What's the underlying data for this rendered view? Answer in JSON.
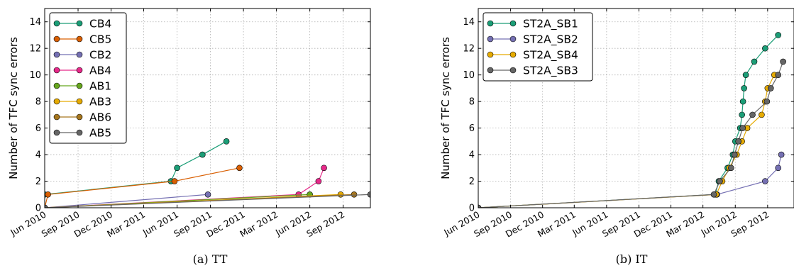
{
  "chart_data": [
    {
      "type": "line",
      "ylabel": "Number of TFC sync errors",
      "xlabel": "",
      "caption": "(a)  TT",
      "xlim": [
        "2010-06-01",
        "2012-11-15"
      ],
      "ylim": [
        0,
        15
      ],
      "yticks": [
        0,
        2,
        4,
        6,
        8,
        10,
        12,
        14
      ],
      "xticks": [
        {
          "date": "2010-06-01",
          "label": "Jun 2010"
        },
        {
          "date": "2010-09-01",
          "label": "Sep 2010"
        },
        {
          "date": "2010-12-01",
          "label": "Dec 2010"
        },
        {
          "date": "2011-03-01",
          "label": "Mar 2011"
        },
        {
          "date": "2011-06-01",
          "label": "Jun 2011"
        },
        {
          "date": "2011-09-01",
          "label": "Sep 2011"
        },
        {
          "date": "2011-12-01",
          "label": "Dec 2011"
        },
        {
          "date": "2012-03-01",
          "label": "Mar 2012"
        },
        {
          "date": "2012-06-01",
          "label": "Jun 2012"
        },
        {
          "date": "2012-09-01",
          "label": "Sep 2012"
        }
      ],
      "grid": true,
      "legend_position": "top-left",
      "series": [
        {
          "name": "CB4",
          "color": "#1b9e77",
          "points": [
            [
              "2010-06-01",
              0
            ],
            [
              "2010-06-01",
              1
            ],
            [
              "2011-05-15",
              2
            ],
            [
              "2011-06-01",
              3
            ],
            [
              "2011-08-10",
              4
            ],
            [
              "2011-10-15",
              5
            ]
          ]
        },
        {
          "name": "CB5",
          "color": "#d95f02",
          "points": [
            [
              "2010-06-01",
              0
            ],
            [
              "2010-06-10",
              1
            ],
            [
              "2011-05-25",
              2
            ],
            [
              "2011-11-20",
              3
            ]
          ]
        },
        {
          "name": "CB2",
          "color": "#7570b3",
          "points": [
            [
              "2010-06-01",
              0
            ],
            [
              "2011-08-25",
              1
            ]
          ]
        },
        {
          "name": "AB4",
          "color": "#e7298a",
          "points": [
            [
              "2010-06-01",
              0
            ],
            [
              "2012-05-01",
              1
            ],
            [
              "2012-06-25",
              2
            ],
            [
              "2012-07-10",
              3
            ]
          ]
        },
        {
          "name": "AB1",
          "color": "#66a61e",
          "points": [
            [
              "2010-06-01",
              0
            ],
            [
              "2012-06-01",
              1
            ]
          ]
        },
        {
          "name": "AB3",
          "color": "#e6ab02",
          "points": [
            [
              "2010-06-01",
              0
            ],
            [
              "2012-08-25",
              1
            ]
          ]
        },
        {
          "name": "AB6",
          "color": "#a6761d",
          "points": [
            [
              "2010-06-01",
              0
            ],
            [
              "2012-10-01",
              1
            ]
          ]
        },
        {
          "name": "AB5",
          "color": "#666666",
          "points": [
            [
              "2010-06-01",
              0
            ],
            [
              "2012-11-15",
              1
            ]
          ]
        }
      ]
    },
    {
      "type": "line",
      "ylabel": "Number of TFC sync errors",
      "xlabel": "",
      "caption": "(b)  IT",
      "xlim": [
        "2010-06-01",
        "2012-11-15"
      ],
      "ylim": [
        0,
        15
      ],
      "yticks": [
        0,
        2,
        4,
        6,
        8,
        10,
        12,
        14
      ],
      "xticks": [
        {
          "date": "2010-06-01",
          "label": "Jun 2010"
        },
        {
          "date": "2010-09-01",
          "label": "Sep 2010"
        },
        {
          "date": "2010-12-01",
          "label": "Dec 2010"
        },
        {
          "date": "2011-03-01",
          "label": "Mar 2011"
        },
        {
          "date": "2011-06-01",
          "label": "Jun 2011"
        },
        {
          "date": "2011-09-01",
          "label": "Sep 2011"
        },
        {
          "date": "2011-12-01",
          "label": "Dec 2011"
        },
        {
          "date": "2012-03-01",
          "label": "Mar 2012"
        },
        {
          "date": "2012-06-01",
          "label": "Jun 2012"
        },
        {
          "date": "2012-09-01",
          "label": "Sep 2012"
        }
      ],
      "grid": true,
      "legend_position": "top-left",
      "series": [
        {
          "name": "ST2A_SB1",
          "color": "#1b9e77",
          "points": [
            [
              "2010-06-01",
              0
            ],
            [
              "2012-04-05",
              1
            ],
            [
              "2012-04-15",
              2
            ],
            [
              "2012-05-10",
              3
            ],
            [
              "2012-05-25",
              4
            ],
            [
              "2012-06-01",
              5
            ],
            [
              "2012-06-15",
              6
            ],
            [
              "2012-06-20",
              7
            ],
            [
              "2012-06-23",
              8
            ],
            [
              "2012-06-26",
              9
            ],
            [
              "2012-07-01",
              10
            ],
            [
              "2012-07-25",
              11
            ],
            [
              "2012-08-25",
              12
            ],
            [
              "2012-10-01",
              13
            ]
          ]
        },
        {
          "name": "ST2A_SB2",
          "color": "#7570b3",
          "points": [
            [
              "2010-06-01",
              0
            ],
            [
              "2012-04-10",
              1
            ],
            [
              "2012-08-25",
              2
            ],
            [
              "2012-10-01",
              3
            ],
            [
              "2012-10-10",
              4
            ]
          ]
        },
        {
          "name": "ST2A_SB4",
          "color": "#e6ab02",
          "points": [
            [
              "2010-06-01",
              0
            ],
            [
              "2012-04-08",
              1
            ],
            [
              "2012-04-25",
              2
            ],
            [
              "2012-05-15",
              3
            ],
            [
              "2012-06-05",
              4
            ],
            [
              "2012-06-20",
              5
            ],
            [
              "2012-07-05",
              6
            ],
            [
              "2012-08-15",
              7
            ],
            [
              "2012-08-25",
              8
            ],
            [
              "2012-09-01",
              9
            ],
            [
              "2012-09-20",
              10
            ]
          ]
        },
        {
          "name": "ST2A_SB3",
          "color": "#666666",
          "points": [
            [
              "2010-06-01",
              0
            ],
            [
              "2012-04-01",
              1
            ],
            [
              "2012-04-18",
              2
            ],
            [
              "2012-05-20",
              3
            ],
            [
              "2012-05-30",
              4
            ],
            [
              "2012-06-10",
              5
            ],
            [
              "2012-06-22",
              6
            ],
            [
              "2012-07-20",
              7
            ],
            [
              "2012-08-30",
              8
            ],
            [
              "2012-09-10",
              9
            ],
            [
              "2012-10-01",
              10
            ],
            [
              "2012-10-15",
              11
            ]
          ]
        }
      ]
    }
  ]
}
